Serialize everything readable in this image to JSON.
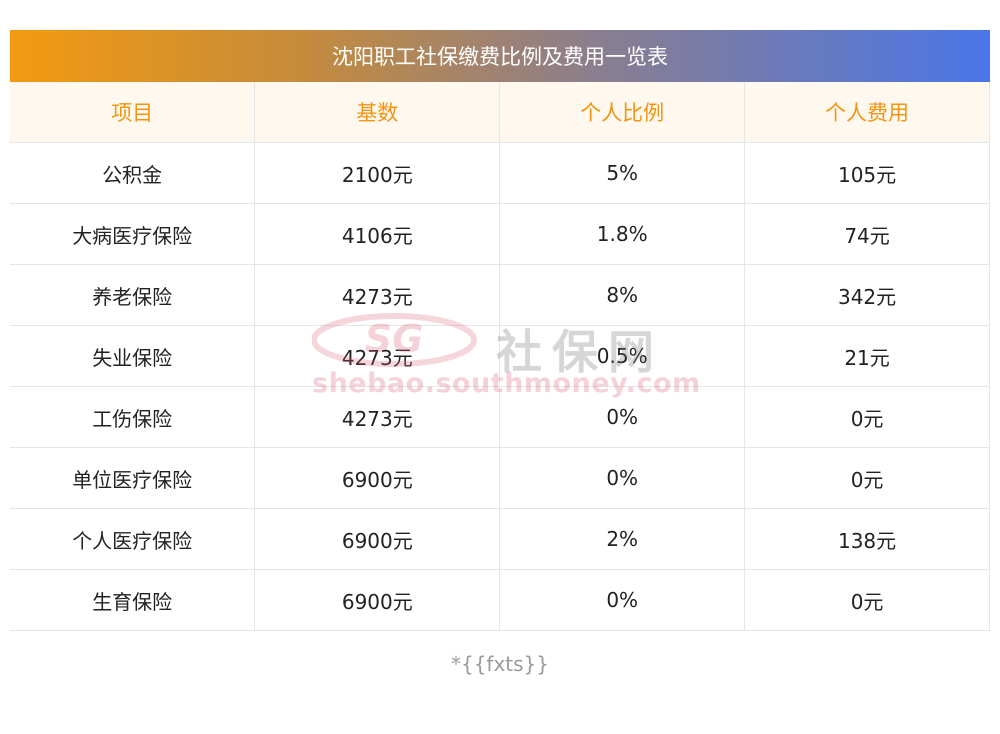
{
  "title": "沈阳职工社保缴费比例及费用一览表",
  "table": {
    "headers": [
      "项目",
      "基数",
      "个人比例",
      "个人费用"
    ],
    "rows": [
      [
        "公积金",
        "2100元",
        "5%",
        "105元"
      ],
      [
        "大病医疗保险",
        "4106元",
        "1.8%",
        "74元"
      ],
      [
        "养老保险",
        "4273元",
        "8%",
        "342元"
      ],
      [
        "失业保险",
        "4273元",
        "0.5%",
        "21元"
      ],
      [
        "工伤保险",
        "4273元",
        "0%",
        "0元"
      ],
      [
        "单位医疗保险",
        "6900元",
        "0%",
        "0元"
      ],
      [
        "个人医疗保险",
        "6900元",
        "2%",
        "138元"
      ],
      [
        "生育保险",
        "6900元",
        "0%",
        "0元"
      ]
    ]
  },
  "watermark": {
    "logo_text": "SG",
    "brand_cn": "社保网",
    "site": "shebao.southmoney.com"
  },
  "footnote": "*{{fxts}}",
  "colors": {
    "header_text": "#f29513",
    "header_bg": "#fff8ef",
    "title_gradient_start": "#f39a12",
    "title_gradient_end": "#4a76e8"
  }
}
